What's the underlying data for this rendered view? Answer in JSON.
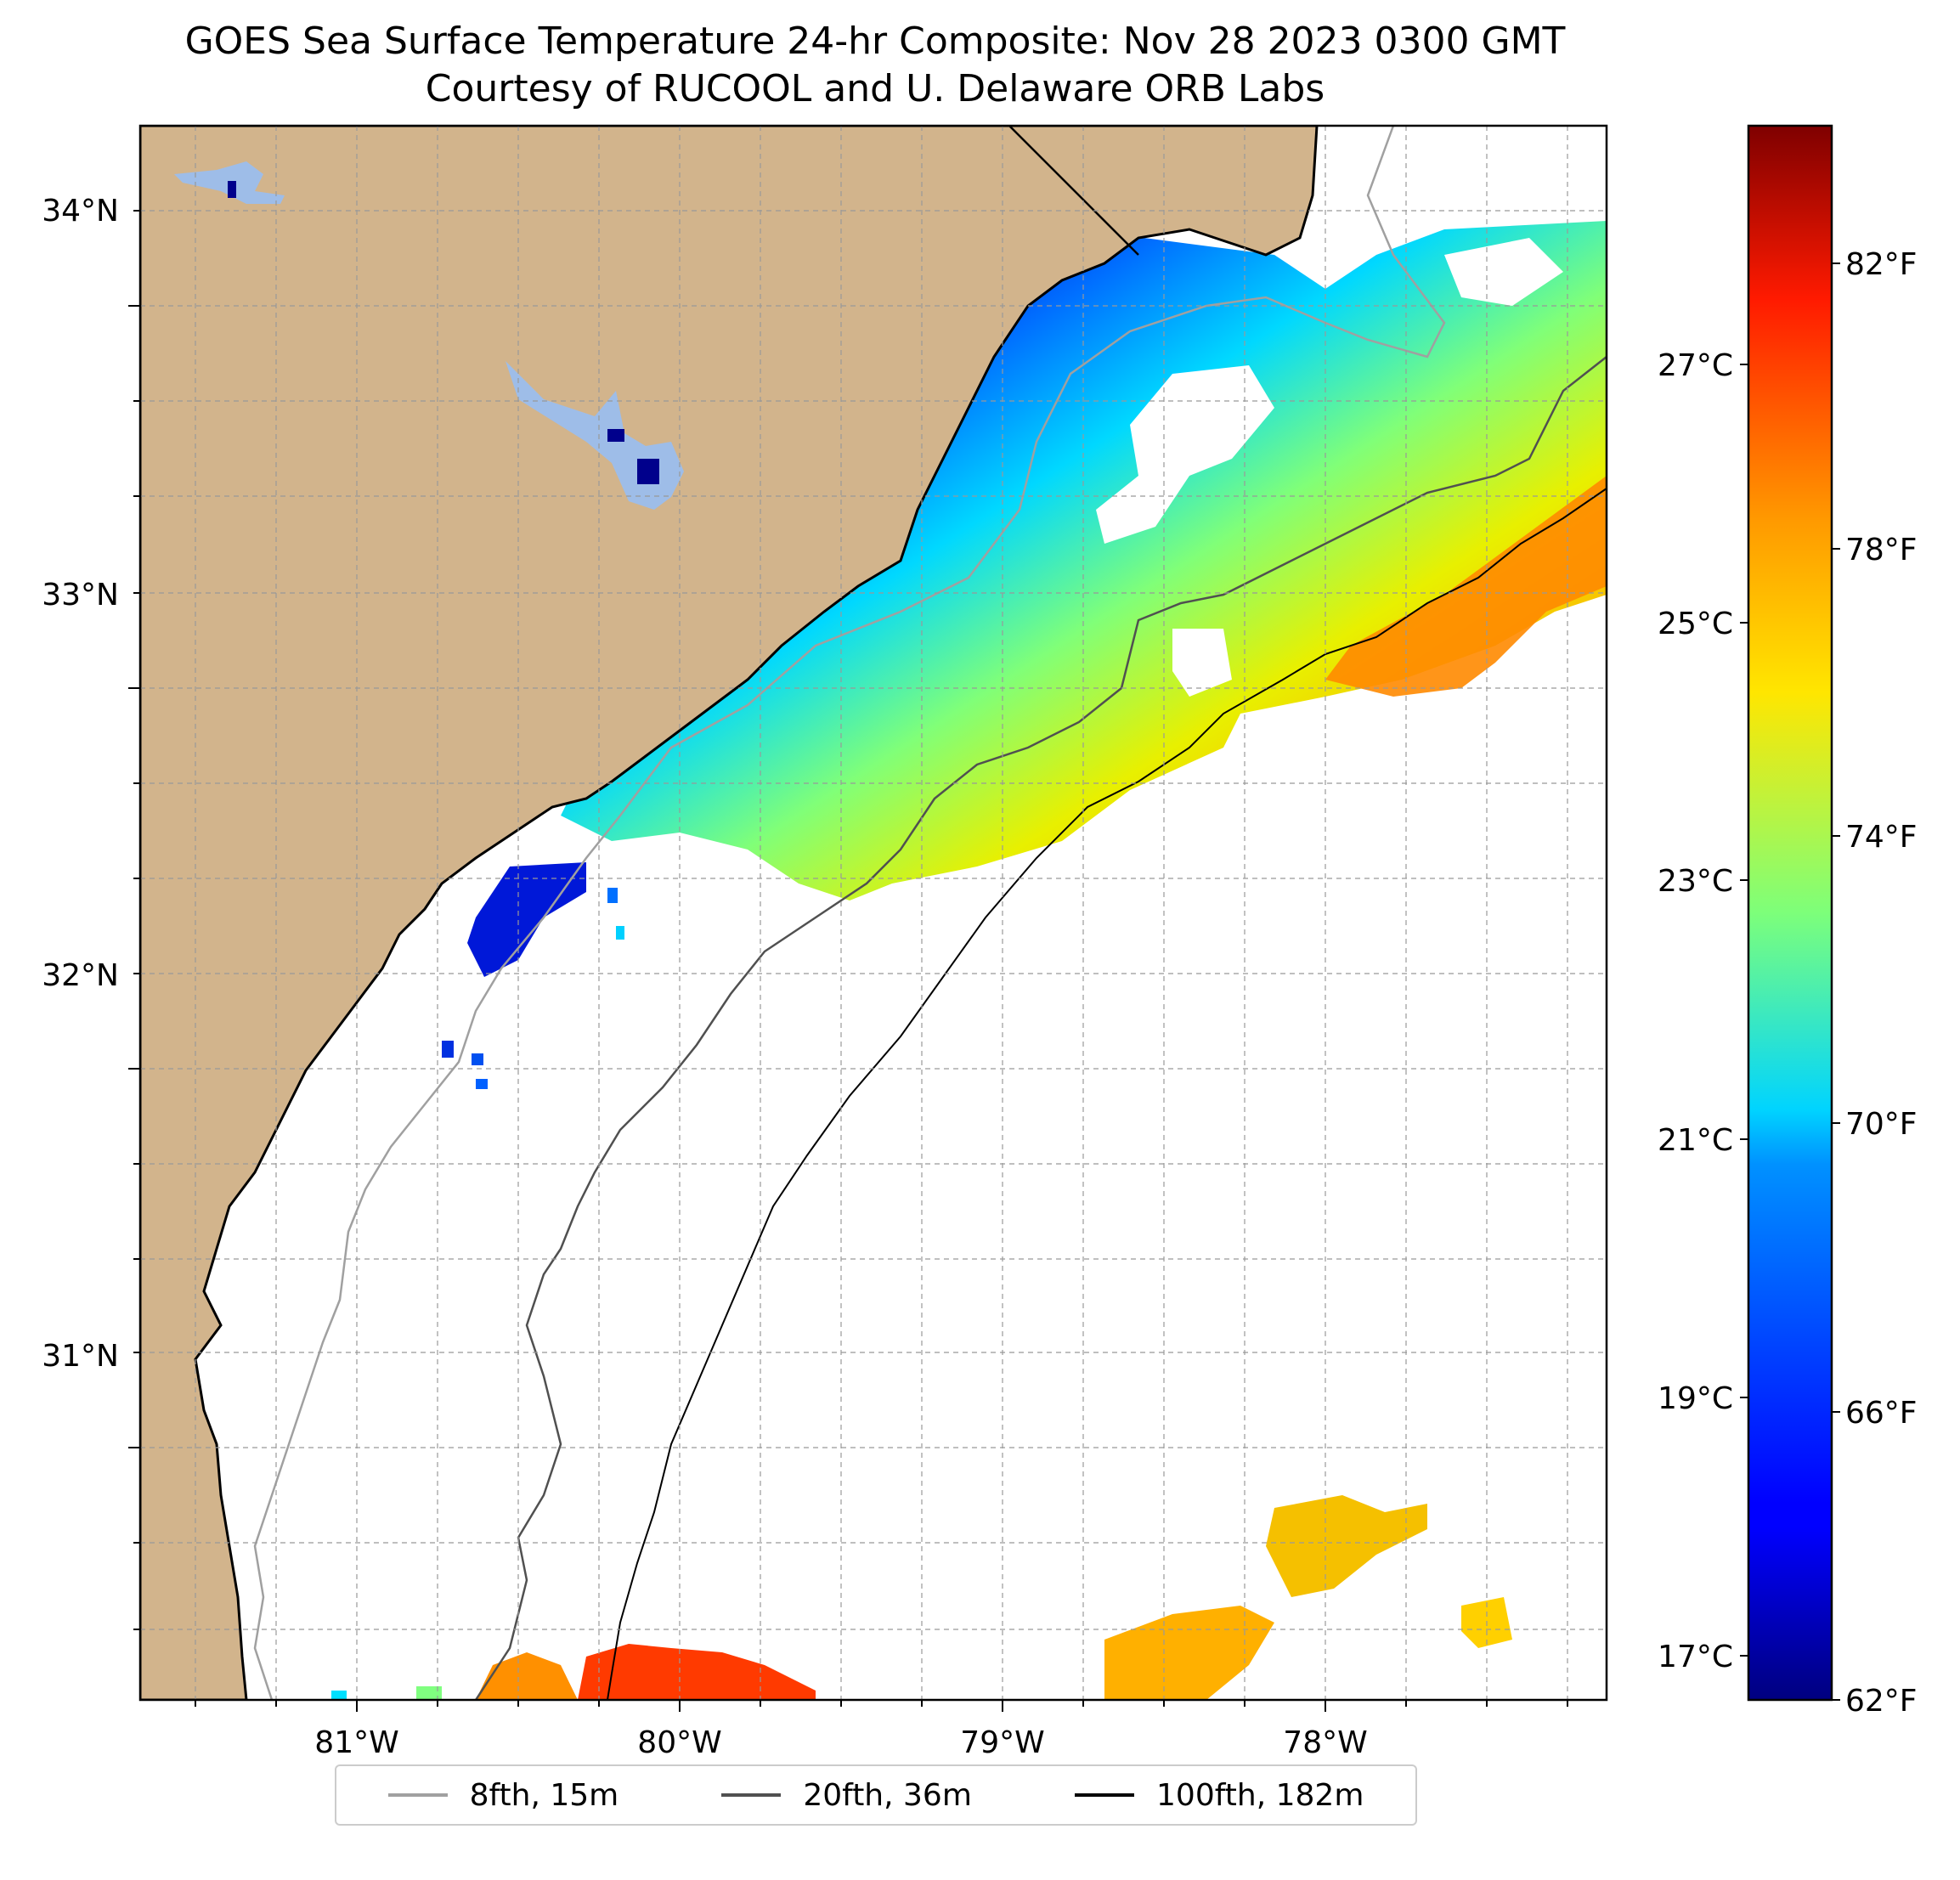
{
  "map": {
    "title": "GOES Sea Surface Temperature 24-hr Composite: Nov 28 2023 0300 GMT",
    "subtitle": "Courtesy of RUCOOL and U. Delaware ORB Labs",
    "lon_labels": [
      "81°W",
      "80°W",
      "79°W",
      "78°W"
    ],
    "lat_labels": [
      "34°N",
      "33°N",
      "32°N",
      "31°N"
    ],
    "extent": {
      "lon": [
        -81.67,
        -77.13
      ],
      "lat": [
        30.07,
        34.22
      ]
    },
    "land_color": "#d2b48c",
    "lake_color": "#9ebde8",
    "colormap": "jet"
  },
  "colorbar": {
    "celsius_labels": [
      "27°C",
      "25°C",
      "23°C",
      "21°C",
      "19°C",
      "17°C"
    ],
    "fahrenheit_labels": [
      "82°F",
      "78°F",
      "74°F",
      "70°F",
      "66°F",
      "62°F"
    ],
    "range_f": [
      62,
      84
    ]
  },
  "legend": {
    "items": [
      {
        "label": "8fth, 15m",
        "color": "#a0a0a0"
      },
      {
        "label": "20fth, 36m",
        "color": "#505050"
      },
      {
        "label": "100fth, 182m",
        "color": "#000000"
      }
    ]
  }
}
